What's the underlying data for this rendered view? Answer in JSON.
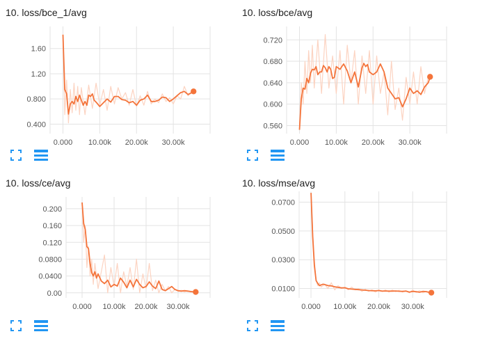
{
  "colors": {
    "accent": "#f4743b",
    "raw_line": "#fcd3c1",
    "grid": "#e3e3e3",
    "icon_blue": "#2196f3"
  },
  "icons": {
    "expand": "expand-icon",
    "data_table": "data-table-icon"
  },
  "chart_data": [
    {
      "type": "line",
      "title": "10. loss/bce_1/avg",
      "xlim": [
        -3500,
        40000
      ],
      "ylim": [
        0.25,
        1.95
      ],
      "xticks": [
        0,
        10000,
        20000,
        30000
      ],
      "xtick_labels": [
        "0.000",
        "10.00k",
        "20.00k",
        "30.00k"
      ],
      "yticks": [
        0.4,
        0.8,
        1.2,
        1.6
      ],
      "ytick_labels": [
        "0.400",
        "0.800",
        "1.20",
        "1.60"
      ],
      "grid": true,
      "series": [
        {
          "kind": "raw",
          "x": [
            0,
            500,
            1000,
            1500,
            2000,
            2500,
            3000,
            3500,
            4000,
            4500,
            5000,
            6000,
            7000,
            8000,
            9000,
            10000,
            11000,
            12000,
            13000,
            14000,
            15000,
            16000,
            17000,
            18000,
            19000,
            20000,
            21000,
            22000,
            23000,
            24000,
            25000,
            26000,
            27000,
            28000,
            29000,
            30000,
            31000,
            32000,
            33000,
            34000,
            35000
          ],
          "y": [
            1.82,
            0.55,
            1.1,
            0.42,
            0.95,
            0.58,
            1.05,
            0.62,
            1.0,
            0.55,
            0.98,
            0.55,
            1.02,
            0.65,
            1.05,
            0.7,
            0.95,
            0.62,
            1.0,
            0.72,
            0.98,
            0.8,
            0.9,
            0.7,
            0.95,
            0.68,
            0.85,
            0.7,
            0.92,
            0.72,
            0.8,
            0.74,
            0.88,
            0.76,
            0.82,
            0.72,
            0.85,
            0.8,
            1.0,
            0.85,
            0.9
          ]
        },
        {
          "kind": "smoothed",
          "x": [
            0,
            500,
            1000,
            1500,
            2000,
            2500,
            3000,
            3500,
            4000,
            4500,
            5000,
            5500,
            6000,
            6500,
            7000,
            7500,
            8000,
            8500,
            9000,
            10000,
            11000,
            12000,
            13000,
            14000,
            15000,
            16000,
            17000,
            18000,
            19000,
            20000,
            21000,
            22000,
            23000,
            24000,
            25000,
            26000,
            27000,
            28000,
            29000,
            30000,
            31000,
            32000,
            33000,
            34000,
            35000,
            35500
          ],
          "y": [
            1.82,
            0.95,
            0.88,
            0.56,
            0.72,
            0.76,
            0.72,
            0.84,
            0.76,
            0.86,
            0.78,
            0.7,
            0.76,
            0.7,
            0.86,
            0.84,
            0.88,
            0.78,
            0.75,
            0.68,
            0.74,
            0.8,
            0.75,
            0.84,
            0.84,
            0.79,
            0.78,
            0.74,
            0.76,
            0.7,
            0.78,
            0.8,
            0.86,
            0.76,
            0.76,
            0.78,
            0.83,
            0.82,
            0.76,
            0.8,
            0.85,
            0.9,
            0.92,
            0.87,
            0.9,
            0.92
          ]
        }
      ],
      "current_point": {
        "x": 35500,
        "y": 0.92
      }
    },
    {
      "type": "line",
      "title": "10. loss/bce/avg",
      "xlim": [
        -3500,
        40000
      ],
      "ylim": [
        0.545,
        0.745
      ],
      "xticks": [
        0,
        10000,
        20000,
        30000
      ],
      "xtick_labels": [
        "0.000",
        "10.00k",
        "20.00k",
        "30.00k"
      ],
      "yticks": [
        0.56,
        0.6,
        0.64,
        0.68,
        0.72
      ],
      "ytick_labels": [
        "0.560",
        "0.600",
        "0.640",
        "0.680",
        "0.720"
      ],
      "grid": true,
      "series": [
        {
          "kind": "raw",
          "x": [
            0,
            500,
            1000,
            1500,
            2000,
            2500,
            3000,
            3500,
            4000,
            5000,
            6000,
            7000,
            8000,
            9000,
            10000,
            11000,
            12000,
            13000,
            14000,
            15000,
            16000,
            17000,
            18000,
            19000,
            20000,
            21000,
            22000,
            23000,
            24000,
            25000,
            26000,
            27000,
            28000,
            29000,
            30000,
            31000,
            32000,
            33000,
            34000,
            35000
          ],
          "y": [
            0.555,
            0.64,
            0.6,
            0.68,
            0.62,
            0.7,
            0.64,
            0.71,
            0.63,
            0.72,
            0.62,
            0.73,
            0.63,
            0.69,
            0.62,
            0.7,
            0.6,
            0.71,
            0.64,
            0.7,
            0.6,
            0.69,
            0.62,
            0.7,
            0.6,
            0.69,
            0.62,
            0.66,
            0.58,
            0.68,
            0.59,
            0.63,
            0.57,
            0.65,
            0.6,
            0.66,
            0.6,
            0.67,
            0.62,
            0.65
          ]
        },
        {
          "kind": "smoothed",
          "x": [
            0,
            500,
            1000,
            1500,
            2000,
            2500,
            3000,
            3500,
            4000,
            4500,
            5000,
            5500,
            6000,
            6500,
            7000,
            7500,
            8000,
            8500,
            9000,
            9500,
            10000,
            11000,
            12000,
            13000,
            14000,
            15000,
            16000,
            17000,
            17500,
            18000,
            18500,
            19000,
            20000,
            21000,
            22000,
            23000,
            24000,
            25000,
            26000,
            27000,
            28000,
            29000,
            30000,
            31000,
            32000,
            33000,
            34000,
            35000,
            35500
          ],
          "y": [
            0.552,
            0.61,
            0.63,
            0.628,
            0.648,
            0.64,
            0.658,
            0.665,
            0.664,
            0.67,
            0.655,
            0.66,
            0.66,
            0.672,
            0.668,
            0.66,
            0.67,
            0.665,
            0.648,
            0.65,
            0.67,
            0.665,
            0.675,
            0.662,
            0.64,
            0.66,
            0.632,
            0.668,
            0.676,
            0.67,
            0.674,
            0.66,
            0.655,
            0.66,
            0.675,
            0.66,
            0.63,
            0.62,
            0.61,
            0.612,
            0.595,
            0.61,
            0.63,
            0.62,
            0.625,
            0.618,
            0.632,
            0.64,
            0.65
          ]
        }
      ],
      "current_point": {
        "x": 35500,
        "y": 0.651
      }
    },
    {
      "type": "line",
      "title": "10. loss/ce/avg",
      "xlim": [
        -5000,
        40000
      ],
      "ylim": [
        -0.012,
        0.228
      ],
      "xticks": [
        0,
        10000,
        20000,
        30000
      ],
      "xtick_labels": [
        "0.000",
        "10.00k",
        "20.00k",
        "30.00k"
      ],
      "yticks": [
        0,
        0.04,
        0.08,
        0.12,
        0.16,
        0.2
      ],
      "ytick_labels": [
        "0.00",
        "0.0400",
        "0.0800",
        "0.120",
        "0.160",
        "0.200"
      ],
      "grid": true,
      "series": [
        {
          "kind": "raw",
          "x": [
            0,
            500,
            1000,
            1500,
            2000,
            2500,
            3000,
            3500,
            4000,
            5000,
            6000,
            7000,
            8000,
            9000,
            10000,
            11000,
            12000,
            13000,
            14000,
            15000,
            16000,
            17000,
            18000,
            19000,
            20000,
            21000,
            22000,
            23000,
            24000,
            25000,
            26000,
            27000,
            28000,
            29000,
            30000,
            31000,
            32000,
            33000,
            34000,
            35000
          ],
          "y": [
            0.21,
            0.12,
            0.16,
            0.06,
            0.11,
            0.04,
            0.08,
            0.02,
            0.07,
            0.01,
            0.05,
            0.09,
            0.0,
            0.06,
            0.015,
            0.07,
            0.0,
            0.05,
            0.015,
            0.06,
            0.008,
            0.08,
            0.0,
            0.045,
            0.01,
            0.07,
            0.005,
            0.03,
            0.0,
            0.02,
            0.005,
            0.015,
            0.0,
            0.008,
            0.003,
            0.006,
            0.002,
            0.005,
            0.001,
            0.003
          ]
        },
        {
          "kind": "smoothed",
          "x": [
            0,
            500,
            1000,
            1500,
            2000,
            2500,
            3000,
            3500,
            4000,
            4500,
            5000,
            6000,
            7000,
            8000,
            9000,
            10000,
            11000,
            12000,
            13000,
            14000,
            15000,
            16000,
            17000,
            18000,
            19000,
            20000,
            21000,
            22000,
            23000,
            24000,
            25000,
            26000,
            27000,
            28000,
            29000,
            30000,
            31000,
            32000,
            33000,
            34000,
            35000,
            35500
          ],
          "y": [
            0.215,
            0.165,
            0.15,
            0.11,
            0.105,
            0.07,
            0.048,
            0.04,
            0.05,
            0.035,
            0.045,
            0.028,
            0.022,
            0.03,
            0.014,
            0.02,
            0.016,
            0.035,
            0.025,
            0.012,
            0.03,
            0.014,
            0.032,
            0.02,
            0.012,
            0.015,
            0.026,
            0.016,
            0.01,
            0.028,
            0.008,
            0.005,
            0.01,
            0.015,
            0.008,
            0.005,
            0.004,
            0.005,
            0.004,
            0.003,
            0.002,
            0.002
          ]
        }
      ],
      "current_point": {
        "x": 35500,
        "y": 0.002
      }
    },
    {
      "type": "line",
      "title": "10. loss/mse/avg",
      "xlim": [
        -3500,
        40000
      ],
      "ylim": [
        0.0035,
        0.0775
      ],
      "xticks": [
        0,
        10000,
        20000,
        30000
      ],
      "xtick_labels": [
        "0.000",
        "10.00k",
        "20.00k",
        "30.00k"
      ],
      "yticks": [
        0.01,
        0.03,
        0.05,
        0.07
      ],
      "ytick_labels": [
        "0.0100",
        "0.0300",
        "0.0500",
        "0.0700"
      ],
      "grid": true,
      "series": [
        {
          "kind": "raw",
          "x": [
            0,
            500,
            1000,
            1500,
            2000,
            2500,
            3000,
            4000,
            5000,
            6000,
            7000,
            8000,
            9000,
            10000,
            11000,
            12000,
            13000,
            14000,
            15000,
            16000,
            17000,
            18000,
            19000,
            20000,
            21000,
            22000,
            23000,
            24000,
            25000,
            26000,
            27000,
            28000,
            29000,
            30000,
            31000,
            32000,
            33000,
            34000,
            35000
          ],
          "y": [
            0.076,
            0.05,
            0.03,
            0.016,
            0.012,
            0.014,
            0.011,
            0.013,
            0.01,
            0.014,
            0.009,
            0.012,
            0.01,
            0.011,
            0.009,
            0.011,
            0.009,
            0.01,
            0.008,
            0.0095,
            0.008,
            0.009,
            0.0075,
            0.009,
            0.008,
            0.009,
            0.0075,
            0.009,
            0.0078,
            0.0088,
            0.0075,
            0.0085,
            0.007,
            0.009,
            0.0072,
            0.0085,
            0.007,
            0.008,
            0.0072
          ]
        },
        {
          "kind": "smoothed",
          "x": [
            0,
            500,
            1000,
            1500,
            2000,
            2500,
            3000,
            3500,
            4000,
            5000,
            6000,
            7000,
            8000,
            9000,
            10000,
            11000,
            12000,
            13000,
            14000,
            15000,
            16000,
            17000,
            18000,
            19000,
            20000,
            21000,
            22000,
            23000,
            24000,
            25000,
            26000,
            27000,
            28000,
            29000,
            30000,
            31000,
            32000,
            33000,
            34000,
            35000,
            35500
          ],
          "y": [
            0.0765,
            0.046,
            0.026,
            0.0155,
            0.0135,
            0.012,
            0.0125,
            0.013,
            0.0128,
            0.012,
            0.0118,
            0.0112,
            0.0108,
            0.0104,
            0.0105,
            0.0098,
            0.0096,
            0.0094,
            0.0092,
            0.009,
            0.0088,
            0.0086,
            0.0085,
            0.0084,
            0.0086,
            0.0082,
            0.0083,
            0.0082,
            0.0082,
            0.0083,
            0.0081,
            0.008,
            0.0082,
            0.0075,
            0.008,
            0.0078,
            0.0074,
            0.008,
            0.0078,
            0.0072,
            0.0071
          ]
        }
      ],
      "current_point": {
        "x": 35500,
        "y": 0.0071
      }
    }
  ]
}
